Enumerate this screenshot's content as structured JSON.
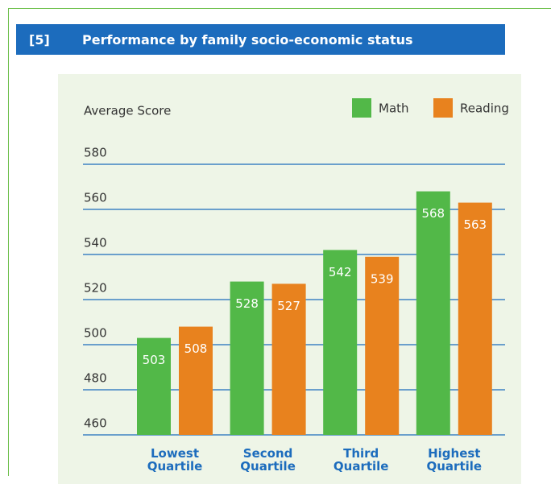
{
  "header": {
    "number": "[5]",
    "title": "Performance by family socio-economic status"
  },
  "chart_data": {
    "type": "bar",
    "ylabel": "Average Score",
    "categories": [
      "Lowest Quartile",
      "Second Quartile",
      "Third Quartile",
      "Highest Quartile"
    ],
    "series": [
      {
        "name": "Math",
        "color": "#52b848",
        "values": [
          503,
          528,
          542,
          568
        ]
      },
      {
        "name": "Reading",
        "color": "#e8821e",
        "values": [
          508,
          527,
          539,
          563
        ]
      }
    ],
    "ylim": [
      460,
      580
    ],
    "yticks": [
      460,
      480,
      500,
      520,
      540,
      560,
      580
    ],
    "grid": true
  }
}
